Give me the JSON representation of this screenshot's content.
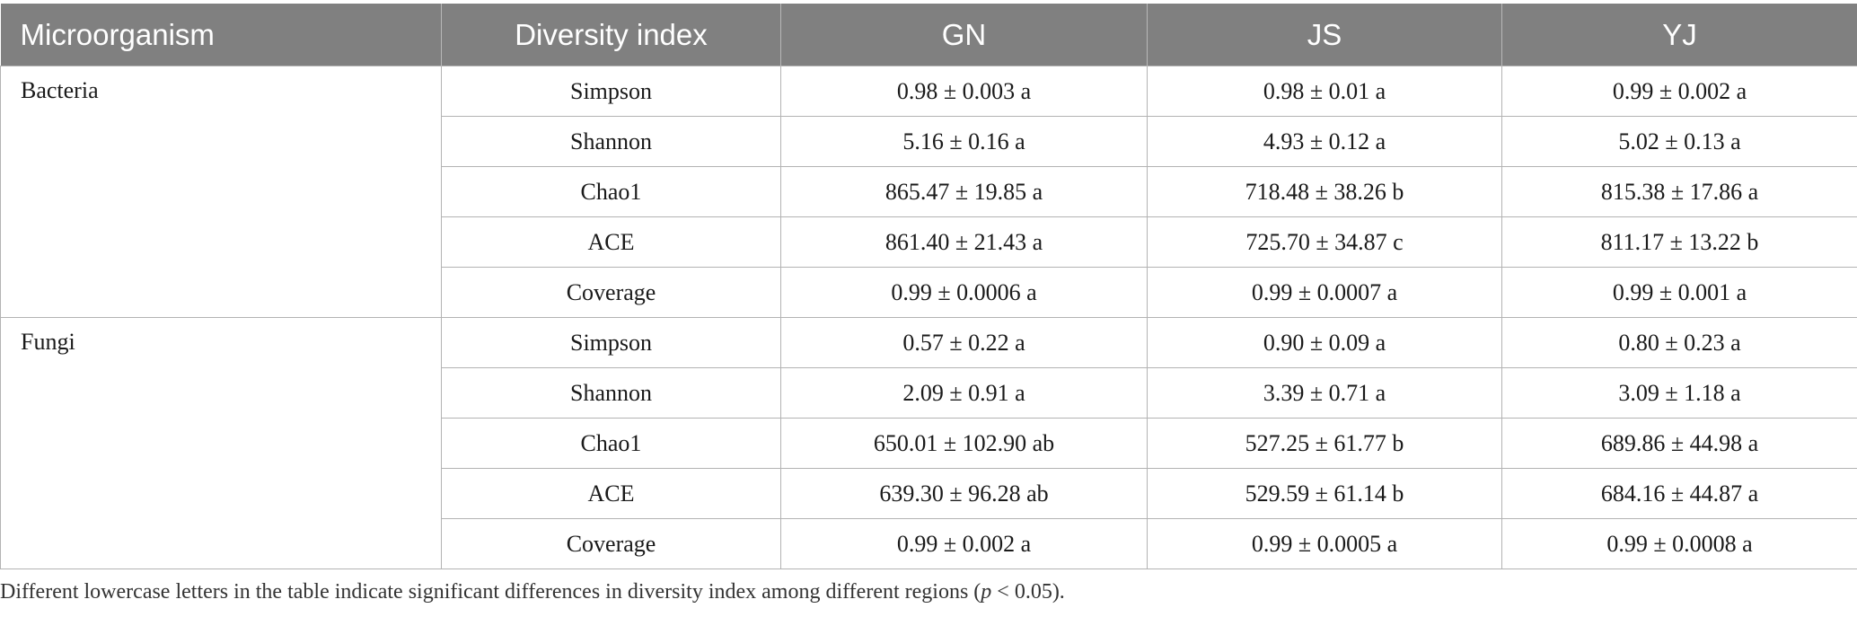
{
  "table": {
    "headers": [
      "Microorganism",
      "Diversity index",
      "GN",
      "JS",
      "YJ"
    ],
    "groups": [
      {
        "name": "Bacteria",
        "rows": [
          [
            "Simpson",
            "0.98 ± 0.003 a",
            "0.98 ± 0.01 a",
            "0.99 ± 0.002 a"
          ],
          [
            "Shannon",
            "5.16 ± 0.16 a",
            "4.93 ± 0.12 a",
            "5.02 ± 0.13 a"
          ],
          [
            "Chao1",
            "865.47 ± 19.85 a",
            "718.48 ± 38.26 b",
            "815.38 ± 17.86 a"
          ],
          [
            "ACE",
            "861.40 ± 21.43 a",
            "725.70 ± 34.87 c",
            "811.17 ± 13.22 b"
          ],
          [
            "Coverage",
            "0.99 ± 0.0006 a",
            "0.99 ± 0.0007 a",
            "0.99 ± 0.001 a"
          ]
        ]
      },
      {
        "name": "Fungi",
        "rows": [
          [
            "Simpson",
            "0.57 ± 0.22 a",
            "0.90 ± 0.09 a",
            "0.80 ± 0.23 a"
          ],
          [
            "Shannon",
            "2.09 ± 0.91 a",
            "3.39 ± 0.71 a",
            "3.09 ± 1.18 a"
          ],
          [
            "Chao1",
            "650.01 ± 102.90 ab",
            "527.25 ± 61.77 b",
            "689.86 ± 44.98 a"
          ],
          [
            "ACE",
            "639.30 ± 96.28 ab",
            "529.59 ± 61.14 b",
            "684.16 ± 44.87 a"
          ],
          [
            "Coverage",
            "0.99 ± 0.002 a",
            "0.99 ± 0.0005 a",
            "0.99 ± 0.0008 a"
          ]
        ]
      }
    ]
  },
  "footnote": {
    "before": "Different lowercase letters in the table indicate significant differences in diversity index among different regions (",
    "italic": "p",
    "after": " < 0.05)."
  },
  "colors": {
    "header_bg": "#808080",
    "header_text": "#ffffff",
    "grid": "#b3b3b3"
  }
}
